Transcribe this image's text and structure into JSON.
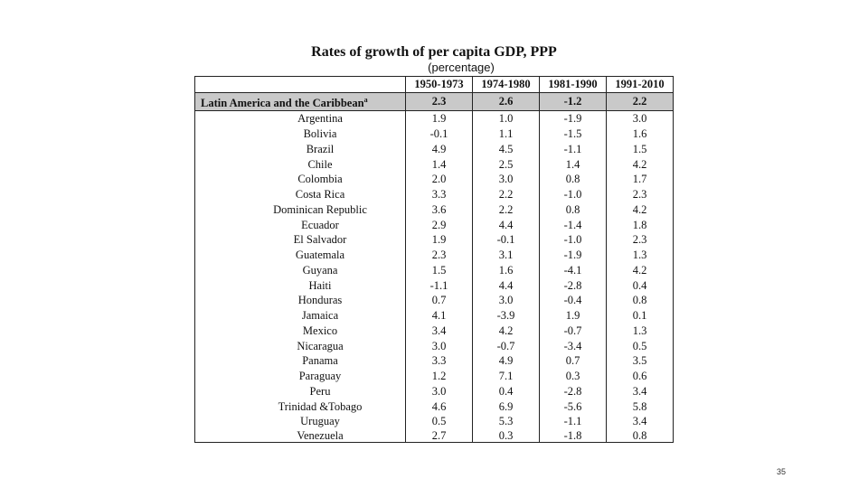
{
  "slide": {
    "title": "Rates of growth of per capita GDP, PPP",
    "subtitle": "(percentage)",
    "page_number": "35"
  },
  "table": {
    "headers": [
      "",
      "1950-1973",
      "1974-1980",
      "1981-1990",
      "1991-2010"
    ],
    "region": {
      "label": "Latin America and the Caribbean",
      "note": "a",
      "values": [
        "2.3",
        "2.6",
        "-1.2",
        "2.2"
      ]
    },
    "rows": [
      {
        "country": "Argentina",
        "values": [
          "1.9",
          "1.0",
          "-1.9",
          "3.0"
        ]
      },
      {
        "country": "Bolivia",
        "values": [
          "-0.1",
          "1.1",
          "-1.5",
          "1.6"
        ]
      },
      {
        "country": "Brazil",
        "values": [
          "4.9",
          "4.5",
          "-1.1",
          "1.5"
        ]
      },
      {
        "country": "Chile",
        "values": [
          "1.4",
          "2.5",
          "1.4",
          "4.2"
        ]
      },
      {
        "country": "Colombia",
        "values": [
          "2.0",
          "3.0",
          "0.8",
          "1.7"
        ]
      },
      {
        "country": "Costa Rica",
        "values": [
          "3.3",
          "2.2",
          "-1.0",
          "2.3"
        ]
      },
      {
        "country": "Dominican Republic",
        "values": [
          "3.6",
          "2.2",
          "0.8",
          "4.2"
        ]
      },
      {
        "country": "Ecuador",
        "values": [
          "2.9",
          "4.4",
          "-1.4",
          "1.8"
        ]
      },
      {
        "country": "El Salvador",
        "values": [
          "1.9",
          "-0.1",
          "-1.0",
          "2.3"
        ]
      },
      {
        "country": "Guatemala",
        "values": [
          "2.3",
          "3.1",
          "-1.9",
          "1.3"
        ]
      },
      {
        "country": "Guyana",
        "values": [
          "1.5",
          "1.6",
          "-4.1",
          "4.2"
        ]
      },
      {
        "country": "Haiti",
        "values": [
          "-1.1",
          "4.4",
          "-2.8",
          "0.4"
        ]
      },
      {
        "country": "Honduras",
        "values": [
          "0.7",
          "3.0",
          "-0.4",
          "0.8"
        ]
      },
      {
        "country": "Jamaica",
        "values": [
          "4.1",
          "-3.9",
          "1.9",
          "0.1"
        ]
      },
      {
        "country": "Mexico",
        "values": [
          "3.4",
          "4.2",
          "-0.7",
          "1.3"
        ]
      },
      {
        "country": "Nicaragua",
        "values": [
          "3.0",
          "-0.7",
          "-3.4",
          "0.5"
        ]
      },
      {
        "country": "Panama",
        "values": [
          "3.3",
          "4.9",
          "0.7",
          "3.5"
        ]
      },
      {
        "country": "Paraguay",
        "values": [
          "1.2",
          "7.1",
          "0.3",
          "0.6"
        ]
      },
      {
        "country": "Peru",
        "values": [
          "3.0",
          "0.4",
          "-2.8",
          "3.4"
        ]
      },
      {
        "country": "Trinidad &Tobago",
        "values": [
          "4.6",
          "6.9",
          "-5.6",
          "5.8"
        ]
      },
      {
        "country": "Uruguay",
        "values": [
          "0.5",
          "5.3",
          "-1.1",
          "3.4"
        ]
      },
      {
        "country": "Venezuela",
        "values": [
          "2.7",
          "0.3",
          "-1.8",
          "0.8"
        ]
      }
    ]
  }
}
